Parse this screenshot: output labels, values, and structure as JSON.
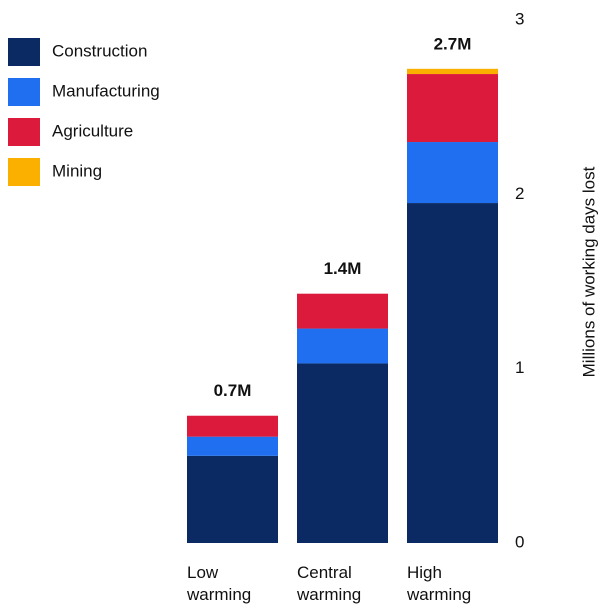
{
  "chart_data": {
    "type": "stacked_bar",
    "y_label": "Millions of working days lost",
    "categories": [
      "Low warming",
      "Central warming",
      "High warming"
    ],
    "series": [
      {
        "name": "Construction",
        "color": "#0b2a63",
        "values": [
          0.5,
          1.03,
          1.95
        ]
      },
      {
        "name": "Manufacturing",
        "color": "#1f6ff0",
        "values": [
          0.11,
          0.2,
          0.35
        ]
      },
      {
        "name": "Agriculture",
        "color": "#dc1a3c",
        "values": [
          0.12,
          0.2,
          0.39
        ]
      },
      {
        "name": "Mining",
        "color": "#fbb000",
        "values": [
          0,
          0,
          0.03
        ]
      }
    ],
    "totals": {
      "values": [
        0.73,
        1.43,
        2.72
      ],
      "value_labels": [
        "0.7M",
        "1.4M",
        "2.7M"
      ]
    },
    "ylim": [
      0,
      3
    ],
    "yticks": [
      0,
      1,
      2,
      3
    ],
    "y_axis_side": "right",
    "grid": false
  }
}
